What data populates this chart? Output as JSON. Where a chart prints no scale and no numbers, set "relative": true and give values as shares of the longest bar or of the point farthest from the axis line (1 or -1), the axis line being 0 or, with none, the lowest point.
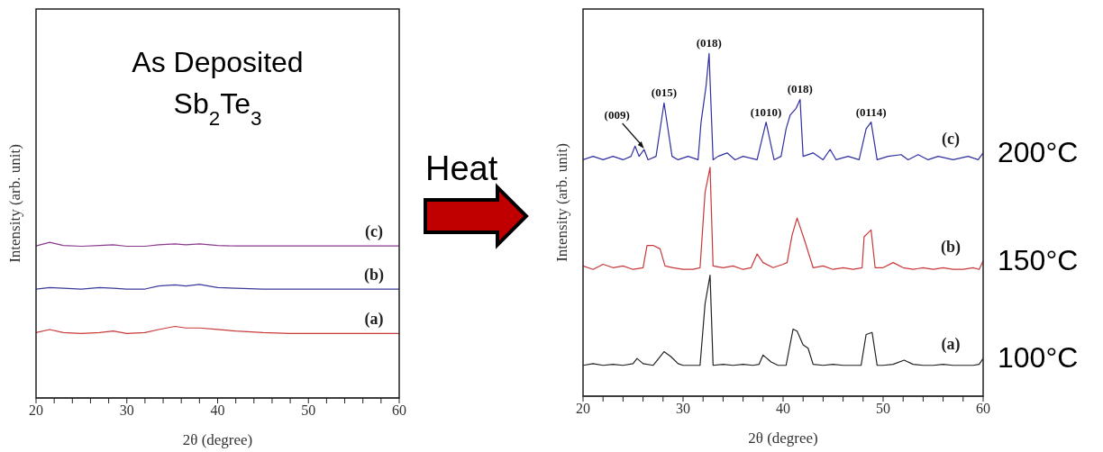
{
  "chart_data": [
    {
      "type": "line",
      "relative": true,
      "xlabel": "2θ (degree)",
      "ylabel": "Intensity (arb. unit)",
      "xlim": [
        20,
        60
      ],
      "xticks": [
        20,
        {
          "value": 22,
          "label": null
        },
        {
          "value": 24,
          "label": null
        },
        {
          "value": 26,
          "label": null
        },
        {
          "value": 28,
          "label": null
        },
        30,
        {
          "value": 32,
          "label": null
        },
        {
          "value": 34,
          "label": null
        },
        {
          "value": 36,
          "label": null
        },
        {
          "value": 38,
          "label": null
        },
        40,
        {
          "value": 42,
          "label": null
        },
        {
          "value": 44,
          "label": null
        },
        {
          "value": 46,
          "label": null
        },
        {
          "value": 48,
          "label": null
        },
        50,
        {
          "value": 52,
          "label": null
        },
        {
          "value": 54,
          "label": null
        },
        {
          "value": 56,
          "label": null
        },
        {
          "value": 58,
          "label": null
        },
        60
      ],
      "annotations": [
        "As Deposited",
        "Sb$_{2}$Te$_{3}$"
      ],
      "series": [
        {
          "name": "(c)",
          "color": "#8a3a8f",
          "x": [
            20,
            21.5,
            23,
            25,
            27,
            28.5,
            30,
            32,
            33.5,
            35.3,
            36.5,
            38,
            40,
            42,
            45,
            48,
            52,
            56,
            60
          ],
          "values": [
            0.977,
            1.0,
            0.98,
            0.975,
            0.98,
            0.985,
            0.975,
            0.975,
            0.985,
            0.99,
            0.985,
            0.99,
            0.98,
            0.977,
            0.977,
            0.977,
            0.977,
            0.977,
            0.977
          ]
        },
        {
          "name": "(b)",
          "color": "#3a3a9a",
          "x": [
            20,
            21.5,
            23,
            25,
            27,
            28.5,
            30,
            32,
            33.5,
            35.3,
            36.5,
            38,
            40,
            42,
            45,
            48,
            52,
            56,
            60
          ],
          "values": [
            0.7,
            0.71,
            0.705,
            0.7,
            0.71,
            0.705,
            0.7,
            0.7,
            0.72,
            0.727,
            0.72,
            0.73,
            0.71,
            0.705,
            0.7,
            0.7,
            0.7,
            0.7,
            0.7
          ]
        },
        {
          "name": "(a)",
          "color": "#c83a3a",
          "x": [
            20,
            21.5,
            23,
            25,
            27,
            28.5,
            30,
            32,
            33.5,
            35.3,
            36.5,
            38,
            40,
            42,
            45,
            48,
            52,
            56,
            60
          ],
          "values": [
            0.42,
            0.44,
            0.42,
            0.415,
            0.42,
            0.43,
            0.415,
            0.42,
            0.44,
            0.46,
            0.45,
            0.45,
            0.44,
            0.43,
            0.42,
            0.415,
            0.415,
            0.415,
            0.415
          ]
        }
      ]
    },
    {
      "type": "line",
      "relative": true,
      "xlabel": "2θ (degree)",
      "ylabel": "Intensity (arb. unit)",
      "xlim": [
        20,
        60
      ],
      "xticks": [
        20,
        {
          "value": 22,
          "label": null
        },
        {
          "value": 24,
          "label": null
        },
        {
          "value": 26,
          "label": null
        },
        {
          "value": 28,
          "label": null
        },
        30,
        {
          "value": 32,
          "label": null
        },
        {
          "value": 34,
          "label": null
        },
        {
          "value": 36,
          "label": null
        },
        {
          "value": 38,
          "label": null
        },
        40,
        {
          "value": 42,
          "label": null
        },
        {
          "value": 44,
          "label": null
        },
        {
          "value": 46,
          "label": null
        },
        {
          "value": 48,
          "label": null
        },
        50,
        {
          "value": 52,
          "label": null
        },
        {
          "value": 54,
          "label": null
        },
        {
          "value": 56,
          "label": null
        },
        {
          "value": 58,
          "label": null
        },
        60
      ],
      "annotations": [
        {
          "text": "(009)",
          "x": 26.1,
          "y": 0.72
        },
        {
          "text": "(015)",
          "x": 28.1,
          "y": 0.856
        },
        {
          "text": "(018)",
          "x": 32.6,
          "y": 1.0
        },
        {
          "text": "(1010)",
          "x": 38.3,
          "y": 0.8
        },
        {
          "text": "(018)",
          "x": 41.7,
          "y": 0.866
        },
        {
          "text": "(0114)",
          "x": 48.8,
          "y": 0.8
        },
        "200°C",
        "150°C",
        "100°C",
        "Heat"
      ],
      "series": [
        {
          "name": "(c)",
          "color": "#2f2fa0",
          "x": [
            20,
            21,
            22,
            23,
            24,
            24.8,
            25.2,
            25.6,
            26.1,
            26.5,
            27.3,
            28.1,
            28.9,
            29.5,
            30.5,
            31.5,
            31.8,
            32.3,
            32.6,
            33.0,
            33.5,
            34.4,
            35.2,
            36,
            37.4,
            38.3,
            39.1,
            39.8,
            40.3,
            40.7,
            41.3,
            41.7,
            42.0,
            43,
            44,
            44.7,
            45.3,
            46.5,
            47.6,
            48.3,
            48.8,
            49.4,
            50.5,
            51.8,
            52.5,
            53.5,
            54.5,
            55.5,
            57,
            58.5,
            59.5,
            60
          ],
          "values": [
            0.69,
            0.7,
            0.69,
            0.7,
            0.69,
            0.7,
            0.73,
            0.7,
            0.72,
            0.69,
            0.7,
            0.856,
            0.7,
            0.69,
            0.7,
            0.69,
            0.8,
            0.905,
            1.0,
            0.69,
            0.7,
            0.71,
            0.69,
            0.7,
            0.69,
            0.8,
            0.69,
            0.7,
            0.78,
            0.82,
            0.84,
            0.866,
            0.7,
            0.71,
            0.69,
            0.72,
            0.69,
            0.7,
            0.69,
            0.78,
            0.8,
            0.69,
            0.7,
            0.705,
            0.69,
            0.705,
            0.69,
            0.7,
            0.69,
            0.7,
            0.69,
            0.71
          ]
        },
        {
          "name": "(b)",
          "color": "#c8383a",
          "x": [
            20,
            21,
            22,
            23,
            24,
            25,
            26,
            26.4,
            27.0,
            27.7,
            28.2,
            29,
            30,
            31,
            31.7,
            32.2,
            32.7,
            33.0,
            34,
            35,
            36,
            36.8,
            37.4,
            38,
            39,
            40,
            40.4,
            40.9,
            41.4,
            42.2,
            43,
            44,
            45,
            46,
            47,
            47.9,
            48.1,
            48.8,
            49.2,
            50,
            51,
            52,
            53,
            54,
            55,
            56,
            57,
            58,
            59,
            59.6,
            60
          ],
          "values": [
            0.38,
            0.37,
            0.385,
            0.375,
            0.38,
            0.37,
            0.375,
            0.44,
            0.44,
            0.43,
            0.38,
            0.375,
            0.37,
            0.37,
            0.375,
            0.595,
            0.668,
            0.38,
            0.375,
            0.38,
            0.37,
            0.375,
            0.415,
            0.39,
            0.375,
            0.385,
            0.39,
            0.47,
            0.52,
            0.45,
            0.375,
            0.38,
            0.37,
            0.375,
            0.37,
            0.375,
            0.465,
            0.485,
            0.375,
            0.375,
            0.39,
            0.375,
            0.37,
            0.375,
            0.37,
            0.375,
            0.37,
            0.37,
            0.375,
            0.37,
            0.395
          ]
        },
        {
          "name": "(a)",
          "color": "#222222",
          "x": [
            20,
            21,
            22,
            23,
            24,
            25,
            25.4,
            26,
            27,
            28.1,
            28.8,
            29.5,
            30,
            31,
            31.7,
            32.2,
            32.7,
            33.0,
            34,
            35,
            36,
            37,
            37.6,
            38.0,
            38.8,
            39.5,
            40.3,
            41.0,
            41.4,
            42.0,
            42.5,
            43.0,
            44,
            45,
            46,
            47,
            47.8,
            48.3,
            48.9,
            49.4,
            50,
            51,
            52.1,
            53,
            54,
            55,
            56,
            57,
            58,
            59,
            59.6,
            60
          ],
          "values": [
            0.09,
            0.095,
            0.09,
            0.093,
            0.09,
            0.095,
            0.11,
            0.095,
            0.09,
            0.13,
            0.115,
            0.095,
            0.09,
            0.09,
            0.09,
            0.27,
            0.353,
            0.09,
            0.093,
            0.09,
            0.093,
            0.09,
            0.093,
            0.12,
            0.1,
            0.09,
            0.09,
            0.196,
            0.19,
            0.15,
            0.14,
            0.093,
            0.09,
            0.093,
            0.09,
            0.09,
            0.09,
            0.18,
            0.186,
            0.09,
            0.09,
            0.093,
            0.105,
            0.093,
            0.09,
            0.09,
            0.093,
            0.09,
            0.09,
            0.09,
            0.093,
            0.11
          ]
        }
      ]
    }
  ]
}
